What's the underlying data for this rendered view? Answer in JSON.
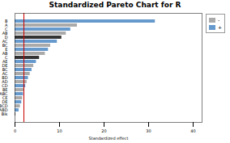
{
  "chart_data": {
    "type": "bar",
    "orientation": "horizontal",
    "title": "Standardized Pareto Chart for R",
    "xlabel": "Standardized effect",
    "categories": [
      "B",
      "A",
      "C",
      "AB",
      "D",
      "AC",
      "BC",
      "E",
      "AB",
      "C",
      "AE",
      "DE",
      "BC",
      "AC",
      "BD",
      "AD",
      "CD",
      "BE",
      "ABC",
      "CE",
      "DE",
      "BCD",
      "ABD",
      "Blk"
    ],
    "values": [
      31.5,
      14.0,
      12.5,
      11.5,
      10.5,
      9.5,
      8.0,
      7.5,
      6.8,
      5.5,
      4.8,
      4.2,
      3.8,
      3.4,
      3.0,
      2.7,
      2.4,
      2.1,
      1.9,
      1.7,
      1.5,
      1.2,
      0.9,
      0.15
    ],
    "colors": [
      "#6699cc",
      "#aaaaaa",
      "#6699cc",
      "#aaaaaa",
      "#333333",
      "#6699cc",
      "#aaaaaa",
      "#6699cc",
      "#aaaaaa",
      "#333333",
      "#6699cc",
      "#aaaaaa",
      "#6699cc",
      "#aaaaaa",
      "#6699cc",
      "#aaaaaa",
      "#6699cc",
      "#aaaaaa",
      "#6699cc",
      "#aaaaaa",
      "#6699cc",
      "#aaaaaa",
      "#6699cc",
      "#333333"
    ],
    "xlim": [
      0,
      42
    ],
    "xticks": [
      0,
      10,
      20,
      30,
      40
    ],
    "reference_line": {
      "x": 2.0,
      "color": "#cc0000"
    },
    "legend": "right",
    "legend_entries": [
      {
        "name": "-",
        "color": "#aaaaaa"
      },
      {
        "name": "+",
        "color": "#6699cc"
      }
    ],
    "grid": false
  }
}
